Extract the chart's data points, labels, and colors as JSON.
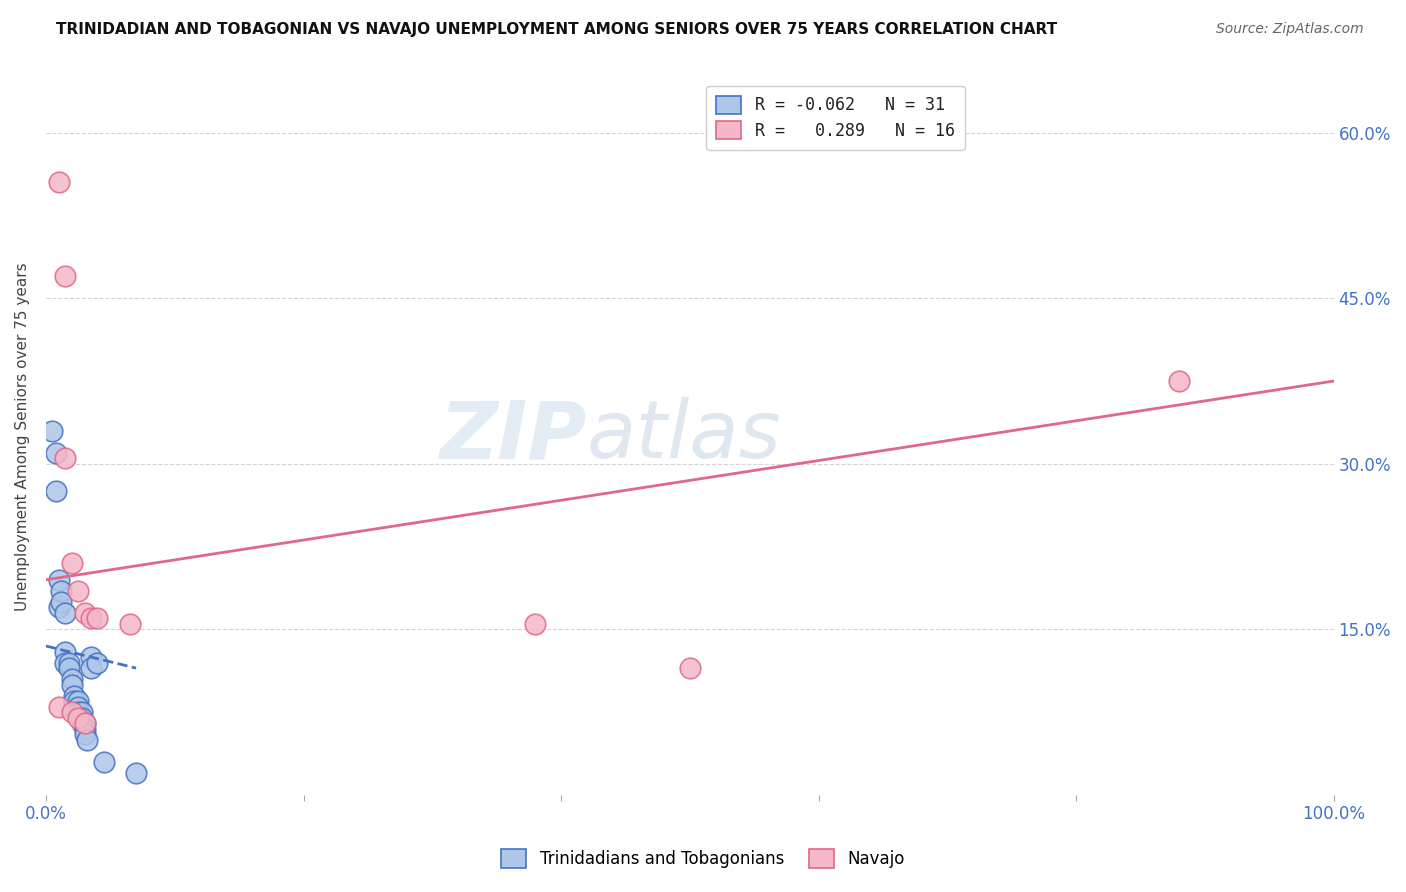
{
  "title": "TRINIDADIAN AND TOBAGONIAN VS NAVAJO UNEMPLOYMENT AMONG SENIORS OVER 75 YEARS CORRELATION CHART",
  "source": "Source: ZipAtlas.com",
  "ylabel": "Unemployment Among Seniors over 75 years",
  "xlim": [
    0.0,
    1.0
  ],
  "ylim": [
    0.0,
    0.65
  ],
  "x_ticks": [
    0.0,
    0.2,
    0.4,
    0.6,
    0.8,
    1.0
  ],
  "y_ticks": [
    0.0,
    0.15,
    0.3,
    0.45,
    0.6
  ],
  "blue_R": "-0.062",
  "blue_N": "31",
  "pink_R": "0.289",
  "pink_N": "16",
  "blue_fill_color": "#aec6e8",
  "pink_fill_color": "#f4b8c8",
  "blue_edge_color": "#4472c4",
  "pink_edge_color": "#e06888",
  "blue_scatter_x": [
    0.005,
    0.008,
    0.008,
    0.01,
    0.01,
    0.012,
    0.012,
    0.015,
    0.015,
    0.015,
    0.018,
    0.018,
    0.02,
    0.02,
    0.022,
    0.022,
    0.025,
    0.025,
    0.025,
    0.028,
    0.028,
    0.028,
    0.03,
    0.03,
    0.03,
    0.032,
    0.035,
    0.035,
    0.04,
    0.045,
    0.07
  ],
  "blue_scatter_y": [
    0.33,
    0.31,
    0.275,
    0.195,
    0.17,
    0.185,
    0.175,
    0.165,
    0.13,
    0.12,
    0.12,
    0.115,
    0.105,
    0.1,
    0.09,
    0.085,
    0.085,
    0.08,
    0.075,
    0.075,
    0.07,
    0.065,
    0.065,
    0.06,
    0.055,
    0.05,
    0.125,
    0.115,
    0.12,
    0.03,
    0.02
  ],
  "pink_scatter_x": [
    0.01,
    0.015,
    0.015,
    0.02,
    0.025,
    0.03,
    0.035,
    0.04,
    0.065,
    0.38,
    0.5,
    0.88,
    0.01,
    0.02,
    0.025,
    0.03
  ],
  "pink_scatter_y": [
    0.555,
    0.47,
    0.305,
    0.21,
    0.185,
    0.165,
    0.16,
    0.16,
    0.155,
    0.155,
    0.115,
    0.375,
    0.08,
    0.075,
    0.07,
    0.065
  ],
  "blue_trend_x_start": 0.0,
  "blue_trend_x_end": 0.07,
  "blue_trend_y_start": 0.135,
  "blue_trend_y_end": 0.115,
  "pink_trend_x_start": 0.0,
  "pink_trend_x_end": 1.0,
  "pink_trend_y_start": 0.195,
  "pink_trend_y_end": 0.375,
  "watermark_zip": "ZIP",
  "watermark_atlas": "atlas",
  "background_color": "#ffffff",
  "grid_color": "#d0d0d0",
  "tick_color": "#4472c4",
  "legend_top_labels": [
    "R = -0.062   N = 31",
    "R =   0.289   N = 16"
  ],
  "legend_bottom_labels": [
    "Trinidadians and Tobagonians",
    "Navajo"
  ]
}
